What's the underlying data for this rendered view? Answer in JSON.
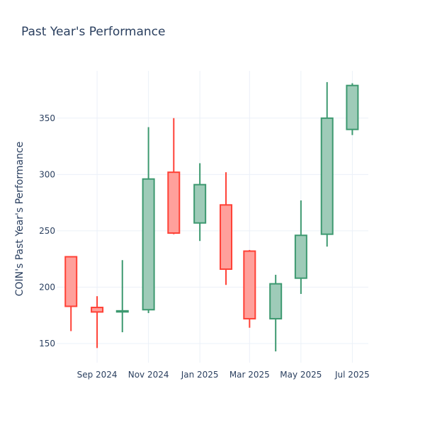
{
  "chart_data": {
    "type": "candlestick",
    "title": "Past Year's Performance",
    "xlabel": "",
    "ylabel": "COIN's Past Year's Performance",
    "ylim": [
      133,
      392
    ],
    "yticks": [
      150,
      200,
      250,
      300,
      350
    ],
    "xticks": [
      {
        "label": "Sep 2024",
        "date": "2024-09-01"
      },
      {
        "label": "Nov 2024",
        "date": "2024-11-01"
      },
      {
        "label": "Jan 2025",
        "date": "2025-01-01"
      },
      {
        "label": "Mar 2025",
        "date": "2025-03-01"
      },
      {
        "label": "May 2025",
        "date": "2025-05-01"
      },
      {
        "label": "Jul 2025",
        "date": "2025-07-01"
      }
    ],
    "xrange": [
      "2024-07-15",
      "2025-07-20"
    ],
    "grid": true,
    "increasing_color": "#3d9970",
    "increasing_fill": "#9ecbb8",
    "decreasing_color": "#ff4136",
    "decreasing_fill": "#ffa09b",
    "candles": [
      {
        "date": "2024-08-01",
        "open": 227,
        "high": 227,
        "low": 161,
        "close": 183
      },
      {
        "date": "2024-09-01",
        "open": 182,
        "high": 192,
        "low": 146,
        "close": 178
      },
      {
        "date": "2024-10-01",
        "open": 179,
        "high": 224,
        "low": 160,
        "close": 179
      },
      {
        "date": "2024-11-01",
        "open": 180,
        "high": 342,
        "low": 177,
        "close": 296
      },
      {
        "date": "2024-12-01",
        "open": 302,
        "high": 350,
        "low": 247,
        "close": 248
      },
      {
        "date": "2025-01-01",
        "open": 257,
        "high": 310,
        "low": 241,
        "close": 291
      },
      {
        "date": "2025-02-01",
        "open": 273,
        "high": 302,
        "low": 202,
        "close": 216
      },
      {
        "date": "2025-03-01",
        "open": 232,
        "high": 233,
        "low": 164,
        "close": 172
      },
      {
        "date": "2025-04-01",
        "open": 172,
        "high": 211,
        "low": 143,
        "close": 203
      },
      {
        "date": "2025-05-01",
        "open": 208,
        "high": 277,
        "low": 194,
        "close": 246
      },
      {
        "date": "2025-06-01",
        "open": 247,
        "high": 382,
        "low": 236,
        "close": 350
      },
      {
        "date": "2025-07-01",
        "open": 340,
        "high": 381,
        "low": 335,
        "close": 379
      }
    ]
  }
}
